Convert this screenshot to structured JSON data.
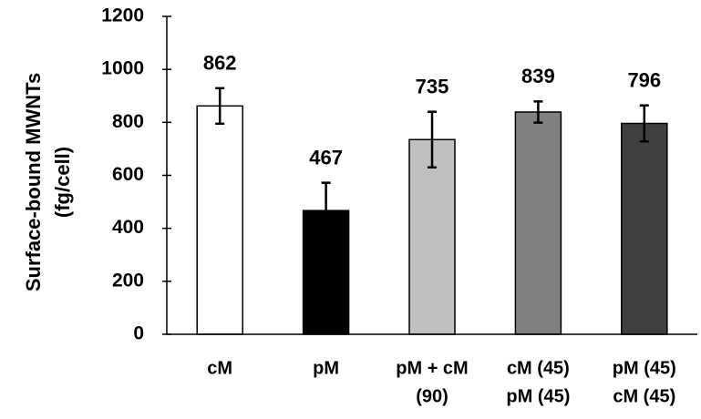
{
  "chart_data": {
    "type": "bar",
    "y_label": [
      "Surface-bound MWNTs",
      "(fg/cell)"
    ],
    "categories": [
      [
        "cM"
      ],
      [
        "pM"
      ],
      [
        "pM + cM",
        "(90)"
      ],
      [
        "cM (45)",
        "pM (45)"
      ],
      [
        "pM (45)",
        "cM (45)"
      ]
    ],
    "values": [
      862,
      467,
      735,
      839,
      796
    ],
    "errors": [
      67,
      105,
      105,
      40,
      68
    ],
    "colors": [
      "#ffffff",
      "#000000",
      "#c0c0c0",
      "#808080",
      "#404040"
    ],
    "ylim": [
      0,
      1200
    ],
    "yticks": [
      0,
      200,
      400,
      600,
      800,
      1000,
      1200
    ],
    "grid": false
  }
}
